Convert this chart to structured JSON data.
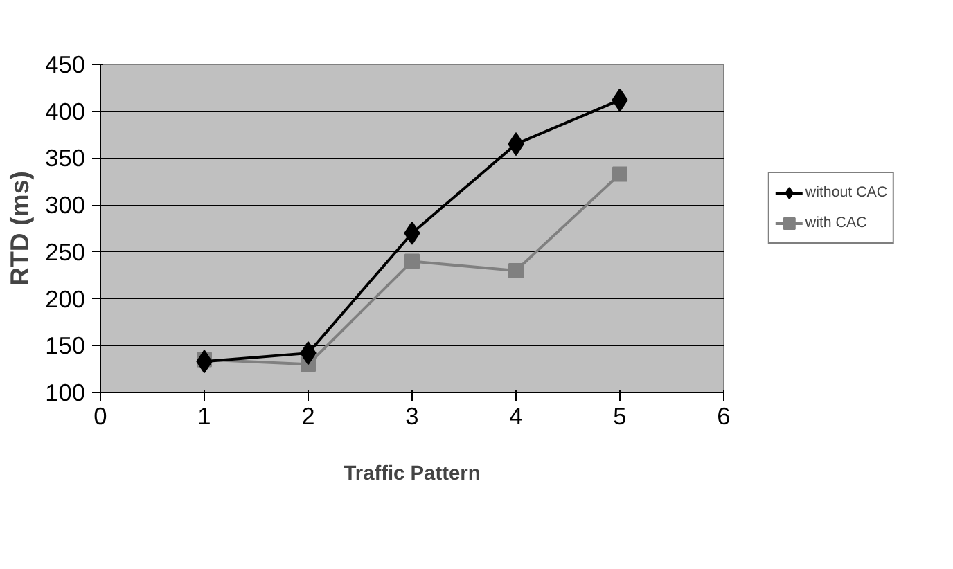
{
  "chart_data": {
    "type": "line",
    "xlabel": "Traffic Pattern",
    "ylabel": "RTD (ms)",
    "x": [
      1,
      2,
      3,
      4,
      5
    ],
    "series": [
      {
        "name": "without CAC",
        "color": "#000000",
        "marker": "diamond",
        "values": [
          133,
          142,
          270,
          365,
          412
        ]
      },
      {
        "name": "with CAC",
        "color": "#808080",
        "marker": "square",
        "values": [
          135,
          130,
          240,
          230,
          333
        ]
      }
    ],
    "xlim": [
      0,
      6
    ],
    "xticks": [
      0,
      1,
      2,
      3,
      4,
      5,
      6
    ],
    "ylim": [
      100,
      450
    ],
    "yticks": [
      100,
      150,
      200,
      250,
      300,
      350,
      400,
      450
    ],
    "grid": "y",
    "legend": "right",
    "line_style": "solid"
  }
}
